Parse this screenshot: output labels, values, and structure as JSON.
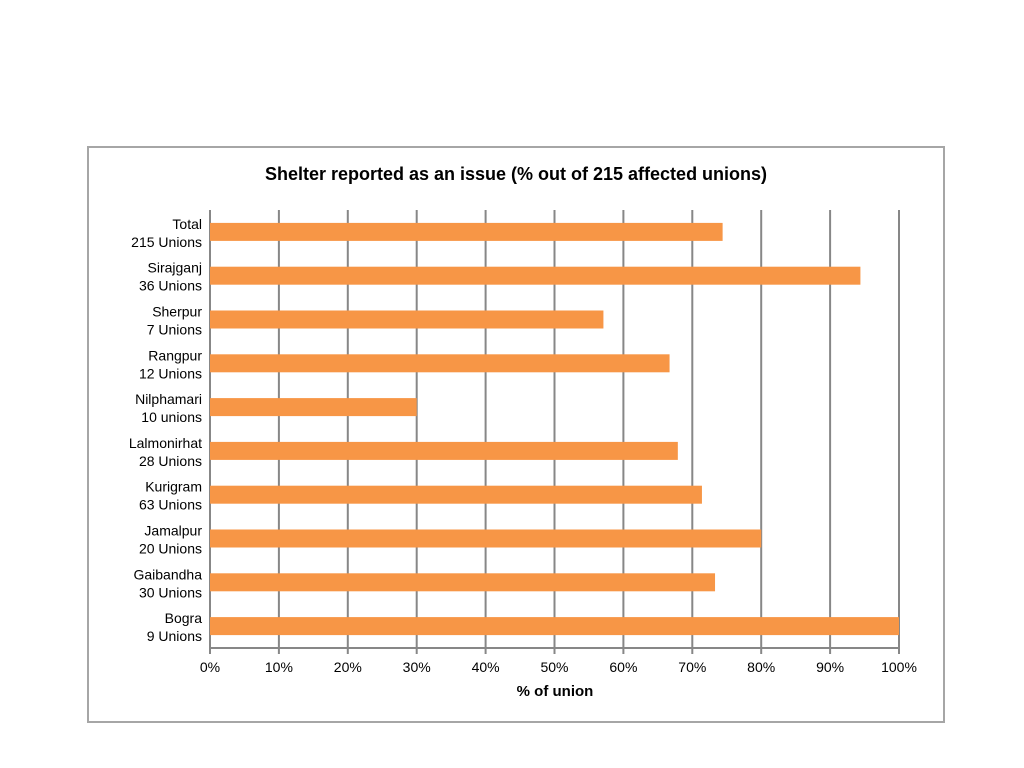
{
  "chart_data": {
    "type": "bar",
    "orientation": "horizontal",
    "title": "Shelter reported as an issue (% out of 215 affected unions)",
    "xlabel": "% of union",
    "ylabel": "",
    "xlim": [
      0,
      100
    ],
    "ticks": [
      "0%",
      "10%",
      "20%",
      "30%",
      "40%",
      "50%",
      "60%",
      "70%",
      "80%",
      "90%",
      "100%"
    ],
    "grid": true,
    "bar_color": "#f79646",
    "categories": [
      [
        "Total",
        "215 Unions"
      ],
      [
        "Sirajganj",
        "36 Unions"
      ],
      [
        "Sherpur",
        "7 Unions"
      ],
      [
        "Rangpur",
        "12 Unions"
      ],
      [
        "Nilphamari",
        "10 unions"
      ],
      [
        "Lalmonirhat",
        "28 Unions"
      ],
      [
        "Kurigram",
        "63 Unions"
      ],
      [
        "Jamalpur",
        "20 Unions"
      ],
      [
        "Gaibandha",
        "30 Unions"
      ],
      [
        "Bogra",
        "9 Unions"
      ]
    ],
    "values": [
      74.4,
      94.4,
      57.1,
      66.7,
      30.0,
      67.9,
      71.4,
      80.0,
      73.3,
      100.0
    ]
  }
}
